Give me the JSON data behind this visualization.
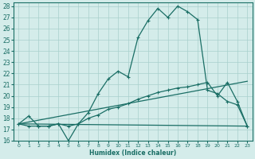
{
  "xlabel": "Humidex (Indice chaleur)",
  "bg_color": "#d4ecea",
  "line_color": "#1a6e65",
  "grid_color": "#a8d0cc",
  "xlim": [
    -0.5,
    23.5
  ],
  "ylim": [
    16,
    28.3
  ],
  "yticks": [
    16,
    17,
    18,
    19,
    20,
    21,
    22,
    23,
    24,
    25,
    26,
    27,
    28
  ],
  "xticks": [
    0,
    1,
    2,
    3,
    4,
    5,
    6,
    7,
    8,
    9,
    10,
    11,
    12,
    13,
    14,
    15,
    16,
    17,
    18,
    19,
    20,
    21,
    22,
    23
  ],
  "line1_x": [
    0,
    1,
    2,
    3,
    4,
    5,
    6,
    7,
    8,
    9,
    10,
    11,
    12,
    13,
    14,
    15,
    16,
    17,
    18,
    19,
    20,
    21,
    22,
    23
  ],
  "line1_y": [
    17.5,
    18.2,
    17.3,
    17.3,
    17.5,
    16.0,
    17.5,
    18.5,
    20.2,
    21.5,
    22.2,
    21.7,
    25.2,
    26.7,
    27.8,
    27.0,
    28.0,
    27.5,
    26.8,
    20.5,
    20.2,
    19.5,
    19.2,
    17.3
  ],
  "line2_x": [
    0,
    1,
    2,
    3,
    4,
    5,
    6,
    7,
    8,
    9,
    10,
    11,
    12,
    13,
    14,
    15,
    16,
    17,
    18,
    19,
    20,
    21,
    22,
    23
  ],
  "line2_y": [
    17.5,
    17.3,
    17.3,
    17.3,
    17.5,
    17.3,
    17.5,
    18.0,
    18.3,
    18.8,
    19.0,
    19.3,
    19.7,
    20.0,
    20.3,
    20.5,
    20.7,
    20.8,
    21.0,
    21.2,
    20.0,
    21.2,
    19.5,
    17.3
  ],
  "line3_x": [
    0,
    23
  ],
  "line3_y": [
    17.5,
    17.3
  ],
  "line4_x": [
    0,
    23
  ],
  "line4_y": [
    17.5,
    21.3
  ]
}
